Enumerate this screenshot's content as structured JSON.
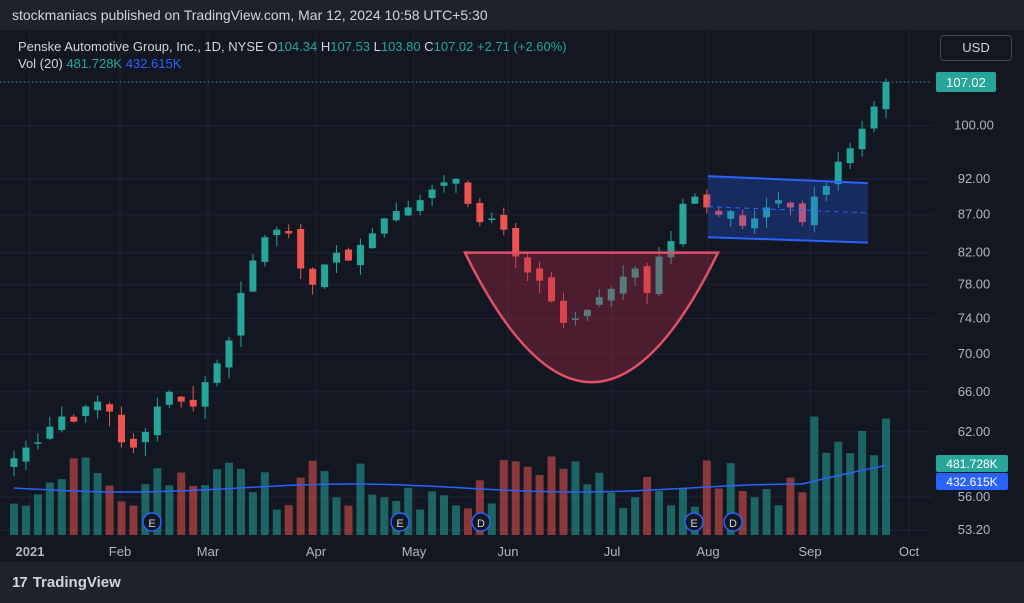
{
  "publisher_line": "stockmaniacs published on TradingView.com, Mar 12, 2024 10:58 UTC+5:30",
  "legend": {
    "title": "Penske Automotive Group, Inc., 1D, NYSE",
    "o_label": "O",
    "o_value": "104.34",
    "h_label": "H",
    "h_value": "107.53",
    "l_label": "L",
    "l_value": "103.80",
    "c_label": "C",
    "c_value": "107.02",
    "change": "+2.71 (+2.60%)",
    "vol_label": "Vol (20)",
    "vol_value": "481.728K",
    "vol_ma_value": "432.615K"
  },
  "currency_button": "USD",
  "footer_brand": "TradingView",
  "colors": {
    "up": "#26a69a",
    "down": "#ef5350",
    "ma": "#2962ff",
    "channel": "#2962ff",
    "cup": "#e05068"
  },
  "chart_data": {
    "type": "candlestick",
    "ylim": [
      53.2,
      107.02
    ],
    "y_ticks": [
      "107.02",
      "100.00",
      "92.00",
      "87.00",
      "82.00",
      "78.00",
      "74.00",
      "70.00",
      "66.00",
      "62.00",
      "56.00",
      "53.20"
    ],
    "x_ticks": [
      "2021",
      "Feb",
      "Mar",
      "Apr",
      "May",
      "Jun",
      "Jul",
      "Aug",
      "Sep",
      "Oct"
    ],
    "last_price": "107.02",
    "volume_labels": {
      "volume": "481.728K",
      "volume_ma": "432.615K"
    },
    "event_markers": [
      {
        "label": "E",
        "month": "Feb"
      },
      {
        "label": "E",
        "month": "Apr"
      },
      {
        "label": "D",
        "month": "May"
      },
      {
        "label": "E",
        "month": "Jul"
      },
      {
        "label": "D",
        "month": "Aug"
      }
    ],
    "patterns": [
      {
        "type": "cup",
        "from": "late May",
        "to": "late Jul",
        "rim": 82.0,
        "bottom": 67.0
      },
      {
        "type": "channel",
        "from": "Aug",
        "to": "mid Sep",
        "upper": [
          92.4,
          91.4
        ],
        "lower": [
          84.0,
          83.3
        ]
      }
    ],
    "close_path": [
      [
        "Jan",
        59.5
      ],
      [
        "Jan",
        60.5
      ],
      [
        "Jan",
        61.0
      ],
      [
        "Jan",
        62.5
      ],
      [
        "Jan",
        63.5
      ],
      [
        "Jan",
        63.0
      ],
      [
        "Jan",
        64.5
      ],
      [
        "Jan",
        65.0
      ],
      [
        "Feb",
        64.0
      ],
      [
        "Feb",
        61.0
      ],
      [
        "Feb",
        60.5
      ],
      [
        "Feb",
        62.0
      ],
      [
        "Feb",
        64.5
      ],
      [
        "Feb",
        66.0
      ],
      [
        "Feb",
        65.0
      ],
      [
        "Feb",
        64.5
      ],
      [
        "Mar",
        67.0
      ],
      [
        "Mar",
        69.0
      ],
      [
        "Mar",
        71.5
      ],
      [
        "Mar",
        77.0
      ],
      [
        "Mar",
        81.0
      ],
      [
        "Mar",
        84.0
      ],
      [
        "Mar",
        85.0
      ],
      [
        "Mar",
        84.5
      ],
      [
        "Apr",
        80.0
      ],
      [
        "Apr",
        78.0
      ],
      [
        "Apr",
        80.5
      ],
      [
        "Apr",
        82.0
      ],
      [
        "Apr",
        81.0
      ],
      [
        "Apr",
        83.0
      ],
      [
        "Apr",
        84.5
      ],
      [
        "Apr",
        86.5
      ],
      [
        "May",
        87.5
      ],
      [
        "May",
        88.0
      ],
      [
        "May",
        89.0
      ],
      [
        "May",
        90.5
      ],
      [
        "May",
        91.5
      ],
      [
        "May",
        92.0
      ],
      [
        "May",
        88.5
      ],
      [
        "May",
        86.0
      ],
      [
        "Jun",
        86.5
      ],
      [
        "Jun",
        85.0
      ],
      [
        "Jun",
        81.5
      ],
      [
        "Jun",
        79.5
      ],
      [
        "Jun",
        78.5
      ],
      [
        "Jun",
        76.0
      ],
      [
        "Jun",
        73.5
      ],
      [
        "Jun",
        74.0
      ],
      [
        "Jul",
        75.0
      ],
      [
        "Jul",
        76.5
      ],
      [
        "Jul",
        77.5
      ],
      [
        "Jul",
        79.0
      ],
      [
        "Jul",
        80.0
      ],
      [
        "Jul",
        77.0
      ],
      [
        "Jul",
        81.5
      ],
      [
        "Jul",
        83.5
      ],
      [
        "Aug",
        88.5
      ],
      [
        "Aug",
        89.5
      ],
      [
        "Aug",
        88.0
      ],
      [
        "Aug",
        87.0
      ],
      [
        "Aug",
        87.5
      ],
      [
        "Aug",
        85.5
      ],
      [
        "Aug",
        86.5
      ],
      [
        "Aug",
        88.0
      ],
      [
        "Sep",
        89.0
      ],
      [
        "Sep",
        88.0
      ],
      [
        "Sep",
        86.0
      ],
      [
        "Sep",
        89.5
      ],
      [
        "Sep",
        91.0
      ],
      [
        "Sep",
        94.5
      ],
      [
        "Sep",
        96.5
      ],
      [
        "Sep",
        99.5
      ],
      [
        "Oct",
        103.0
      ],
      [
        "Oct",
        107.02
      ]
    ]
  }
}
